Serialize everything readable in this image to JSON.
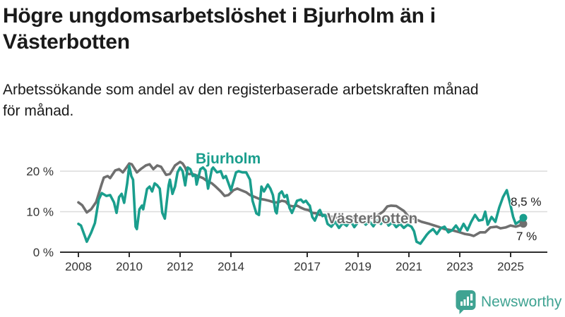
{
  "header": {
    "title_lines": [
      "Högre ungdomsarbetslöshet i Bjurholm än i",
      "Västerbotten"
    ],
    "subtitle_lines": [
      "Arbetssökande som andel av den registerbaserade arbetskraften månad",
      "för månad."
    ]
  },
  "footer": {
    "brand": "Newsworthy",
    "logo_icon": "bar-chart-speech-bubble-icon"
  },
  "colors": {
    "bjurholm": "#1a9e8d",
    "vasterbotten": "#6f6f6f",
    "grid": "#dcdcdc",
    "axis": "#2e2e2e",
    "text": "#1a1a1a",
    "brand": "#3fa392"
  },
  "chart_data": {
    "type": "line",
    "title": "Högre ungdomsarbetslöshet i Bjurholm än i Västerbotten",
    "subtitle": "Arbetssökande som andel av den registerbaserade arbetskraften månad för månad.",
    "xlabel": "",
    "ylabel": "",
    "y_unit": "%",
    "xlim": [
      2007.3,
      2026.4
    ],
    "ylim": [
      0,
      24
    ],
    "grid": true,
    "legend_position": "inline-labels",
    "x_ticks": [
      2008,
      2010,
      2012,
      2014,
      2017,
      2019,
      2021,
      2023,
      2025
    ],
    "y_ticks": [
      {
        "value": 0,
        "label": "0 %"
      },
      {
        "value": 10,
        "label": "10 %"
      },
      {
        "value": 20,
        "label": "20 %"
      }
    ],
    "series": [
      {
        "id": "bjurholm",
        "name": "Bjurholm",
        "color": "#1a9e8d",
        "end_label": "8,5 %",
        "end_value": 8.5,
        "points": [
          [
            2008.0,
            7.0
          ],
          [
            2008.1,
            6.6
          ],
          [
            2008.25,
            4.0
          ],
          [
            2008.33,
            2.6
          ],
          [
            2008.5,
            4.8
          ],
          [
            2008.65,
            7.2
          ],
          [
            2008.8,
            13.0
          ],
          [
            2008.92,
            14.6
          ],
          [
            2009.1,
            13.9
          ],
          [
            2009.25,
            14.1
          ],
          [
            2009.4,
            12.3
          ],
          [
            2009.5,
            9.7
          ],
          [
            2009.6,
            13.6
          ],
          [
            2009.7,
            14.4
          ],
          [
            2009.8,
            12.2
          ],
          [
            2009.92,
            17.0
          ],
          [
            2010.0,
            21.3
          ],
          [
            2010.08,
            18.8
          ],
          [
            2010.15,
            17.9
          ],
          [
            2010.25,
            6.3
          ],
          [
            2010.3,
            5.7
          ],
          [
            2010.4,
            10.6
          ],
          [
            2010.5,
            11.5
          ],
          [
            2010.55,
            10.6
          ],
          [
            2010.7,
            15.6
          ],
          [
            2010.8,
            16.2
          ],
          [
            2010.9,
            15.0
          ],
          [
            2011.0,
            17.0
          ],
          [
            2011.1,
            16.5
          ],
          [
            2011.2,
            15.7
          ],
          [
            2011.3,
            9.7
          ],
          [
            2011.4,
            8.3
          ],
          [
            2011.55,
            16.5
          ],
          [
            2011.6,
            17.9
          ],
          [
            2011.7,
            14.4
          ],
          [
            2011.8,
            16.2
          ],
          [
            2011.9,
            19.7
          ],
          [
            2012.0,
            20.9
          ],
          [
            2012.1,
            20.0
          ],
          [
            2012.2,
            16.5
          ],
          [
            2012.3,
            20.9
          ],
          [
            2012.4,
            20.5
          ],
          [
            2012.5,
            18.8
          ],
          [
            2012.6,
            19.1
          ],
          [
            2012.65,
            16.7
          ],
          [
            2012.8,
            20.5
          ],
          [
            2012.9,
            20.9
          ],
          [
            2013.0,
            20.2
          ],
          [
            2013.1,
            15.7
          ],
          [
            2013.25,
            20.5
          ],
          [
            2013.3,
            20.9
          ],
          [
            2013.45,
            19.7
          ],
          [
            2013.6,
            20.0
          ],
          [
            2013.7,
            18.3
          ],
          [
            2013.8,
            18.8
          ],
          [
            2013.95,
            16.2
          ],
          [
            2014.0,
            15.3
          ],
          [
            2014.2,
            19.7
          ],
          [
            2014.3,
            20.0
          ],
          [
            2014.45,
            19.7
          ],
          [
            2014.6,
            19.7
          ],
          [
            2014.75,
            17.9
          ],
          [
            2014.85,
            12.7
          ],
          [
            2015.0,
            9.6
          ],
          [
            2015.1,
            9.2
          ],
          [
            2015.2,
            16.2
          ],
          [
            2015.3,
            15.0
          ],
          [
            2015.45,
            16.7
          ],
          [
            2015.55,
            15.7
          ],
          [
            2015.65,
            14.1
          ],
          [
            2015.75,
            10.1
          ],
          [
            2015.8,
            9.6
          ],
          [
            2015.9,
            14.4
          ],
          [
            2016.0,
            15.0
          ],
          [
            2016.1,
            13.6
          ],
          [
            2016.2,
            14.1
          ],
          [
            2016.3,
            11.0
          ],
          [
            2016.4,
            9.7
          ],
          [
            2016.6,
            12.7
          ],
          [
            2016.75,
            13.0
          ],
          [
            2016.85,
            12.3
          ],
          [
            2016.95,
            12.7
          ],
          [
            2017.05,
            11.8
          ],
          [
            2017.1,
            11.5
          ],
          [
            2017.2,
            8.7
          ],
          [
            2017.3,
            7.8
          ],
          [
            2017.45,
            10.1
          ],
          [
            2017.5,
            10.4
          ],
          [
            2017.6,
            8.9
          ],
          [
            2017.7,
            9.2
          ],
          [
            2017.8,
            7.0
          ],
          [
            2017.95,
            6.3
          ],
          [
            2018.1,
            7.5
          ],
          [
            2018.25,
            6.0
          ],
          [
            2018.4,
            7.2
          ],
          [
            2018.55,
            6.5
          ],
          [
            2018.7,
            7.8
          ],
          [
            2018.85,
            6.2
          ],
          [
            2019.0,
            7.4
          ],
          [
            2019.15,
            8.0
          ],
          [
            2019.3,
            6.8
          ],
          [
            2019.45,
            7.6
          ],
          [
            2019.6,
            6.4
          ],
          [
            2019.75,
            7.8
          ],
          [
            2019.9,
            7.0
          ],
          [
            2020.05,
            8.2
          ],
          [
            2020.2,
            6.6
          ],
          [
            2020.35,
            7.4
          ],
          [
            2020.5,
            6.2
          ],
          [
            2020.65,
            7.0
          ],
          [
            2020.8,
            6.0
          ],
          [
            2020.95,
            6.8
          ],
          [
            2021.1,
            6.3
          ],
          [
            2021.2,
            5.2
          ],
          [
            2021.3,
            2.6
          ],
          [
            2021.45,
            2.1
          ],
          [
            2021.6,
            3.4
          ],
          [
            2021.7,
            4.3
          ],
          [
            2021.8,
            5.0
          ],
          [
            2021.95,
            5.7
          ],
          [
            2022.1,
            4.5
          ],
          [
            2022.25,
            5.9
          ],
          [
            2022.4,
            6.3
          ],
          [
            2022.55,
            4.9
          ],
          [
            2022.7,
            5.4
          ],
          [
            2022.85,
            6.6
          ],
          [
            2023.0,
            5.2
          ],
          [
            2023.15,
            7.0
          ],
          [
            2023.3,
            5.4
          ],
          [
            2023.45,
            7.5
          ],
          [
            2023.6,
            9.2
          ],
          [
            2023.75,
            7.8
          ],
          [
            2023.9,
            8.0
          ],
          [
            2024.0,
            10.0
          ],
          [
            2024.1,
            6.8
          ],
          [
            2024.25,
            8.7
          ],
          [
            2024.4,
            7.5
          ],
          [
            2024.55,
            11.0
          ],
          [
            2024.7,
            13.6
          ],
          [
            2024.85,
            15.3
          ],
          [
            2025.0,
            11.5
          ],
          [
            2025.1,
            8.7
          ],
          [
            2025.2,
            7.0
          ],
          [
            2025.35,
            7.6
          ],
          [
            2025.5,
            8.5
          ]
        ]
      },
      {
        "id": "vasterbotten",
        "name": "Västerbotten",
        "color": "#6f6f6f",
        "end_label": "7 %",
        "end_value": 7,
        "points": [
          [
            2008.0,
            12.3
          ],
          [
            2008.15,
            11.6
          ],
          [
            2008.33,
            9.8
          ],
          [
            2008.5,
            10.6
          ],
          [
            2008.7,
            12.4
          ],
          [
            2008.9,
            16.5
          ],
          [
            2009.0,
            18.4
          ],
          [
            2009.15,
            18.8
          ],
          [
            2009.25,
            18.3
          ],
          [
            2009.45,
            20.2
          ],
          [
            2009.6,
            20.5
          ],
          [
            2009.75,
            19.7
          ],
          [
            2009.9,
            21.0
          ],
          [
            2010.0,
            21.9
          ],
          [
            2010.1,
            21.7
          ],
          [
            2010.3,
            19.7
          ],
          [
            2010.45,
            20.5
          ],
          [
            2010.65,
            21.4
          ],
          [
            2010.8,
            21.7
          ],
          [
            2010.95,
            20.5
          ],
          [
            2011.1,
            21.4
          ],
          [
            2011.25,
            21.1
          ],
          [
            2011.45,
            19.1
          ],
          [
            2011.6,
            19.3
          ],
          [
            2011.8,
            21.4
          ],
          [
            2012.0,
            22.3
          ],
          [
            2012.1,
            21.9
          ],
          [
            2012.2,
            20.9
          ],
          [
            2012.3,
            19.3
          ],
          [
            2012.5,
            19.3
          ],
          [
            2012.7,
            18.8
          ],
          [
            2012.9,
            18.3
          ],
          [
            2013.05,
            17.6
          ],
          [
            2013.25,
            17.0
          ],
          [
            2013.4,
            16.2
          ],
          [
            2013.6,
            15.0
          ],
          [
            2013.75,
            13.9
          ],
          [
            2013.9,
            14.1
          ],
          [
            2014.1,
            15.3
          ],
          [
            2014.25,
            15.7
          ],
          [
            2014.4,
            15.3
          ],
          [
            2014.6,
            14.8
          ],
          [
            2014.75,
            14.1
          ],
          [
            2014.95,
            13.6
          ],
          [
            2015.1,
            13.2
          ],
          [
            2015.3,
            13.0
          ],
          [
            2015.5,
            12.7
          ],
          [
            2015.7,
            12.3
          ],
          [
            2015.85,
            12.3
          ],
          [
            2016.0,
            12.7
          ],
          [
            2016.15,
            12.5
          ],
          [
            2016.3,
            11.5
          ],
          [
            2016.45,
            11.3
          ],
          [
            2016.6,
            11.5
          ],
          [
            2016.75,
            11.0
          ],
          [
            2016.9,
            10.6
          ],
          [
            2017.05,
            10.4
          ],
          [
            2017.2,
            9.7
          ],
          [
            2017.35,
            9.6
          ],
          [
            2017.5,
            9.2
          ],
          [
            2017.65,
            9.2
          ],
          [
            2017.8,
            8.9
          ],
          [
            2018.0,
            8.7
          ],
          [
            2018.2,
            8.5
          ],
          [
            2018.4,
            8.4
          ],
          [
            2018.6,
            8.3
          ],
          [
            2018.8,
            8.5
          ],
          [
            2019.0,
            8.6
          ],
          [
            2019.2,
            8.7
          ],
          [
            2019.4,
            8.5
          ],
          [
            2019.6,
            8.6
          ],
          [
            2019.8,
            9.2
          ],
          [
            2020.0,
            10.1
          ],
          [
            2020.15,
            11.3
          ],
          [
            2020.3,
            11.5
          ],
          [
            2020.5,
            11.4
          ],
          [
            2020.65,
            10.8
          ],
          [
            2020.8,
            10.2
          ],
          [
            2021.0,
            8.7
          ],
          [
            2021.2,
            8.3
          ],
          [
            2021.5,
            7.5
          ],
          [
            2021.8,
            7.0
          ],
          [
            2022.0,
            6.6
          ],
          [
            2022.15,
            6.3
          ],
          [
            2022.4,
            5.7
          ],
          [
            2022.7,
            5.4
          ],
          [
            2023.0,
            4.9
          ],
          [
            2023.2,
            4.5
          ],
          [
            2023.4,
            4.3
          ],
          [
            2023.55,
            4.0
          ],
          [
            2023.8,
            4.9
          ],
          [
            2024.0,
            4.9
          ],
          [
            2024.2,
            6.1
          ],
          [
            2024.45,
            6.3
          ],
          [
            2024.6,
            5.9
          ],
          [
            2024.8,
            6.1
          ],
          [
            2025.0,
            6.6
          ],
          [
            2025.2,
            6.3
          ],
          [
            2025.35,
            6.6
          ],
          [
            2025.5,
            7.0
          ]
        ]
      }
    ]
  }
}
